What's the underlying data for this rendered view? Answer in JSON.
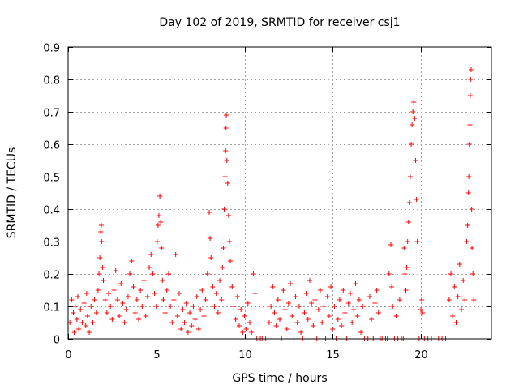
{
  "chart_data": {
    "type": "scatter",
    "title": "Day 102 of 2019, SRMTID for receiver csj1",
    "xlabel": "GPS time / hours",
    "ylabel": "SRMTID / TECUs",
    "xlim": [
      0,
      24
    ],
    "ylim": [
      0,
      0.9
    ],
    "xticks": [
      0,
      5,
      10,
      15,
      20
    ],
    "xtick_labels": [
      "0",
      "5",
      "10",
      "15",
      "20"
    ],
    "yticks": [
      0,
      0.1,
      0.2,
      0.3,
      0.4,
      0.5,
      0.6,
      0.7,
      0.8,
      0.9
    ],
    "ytick_labels": [
      "0",
      "0.1",
      "0.2",
      "0.3",
      "0.4",
      "0.5",
      "0.6",
      "0.7",
      "0.8",
      "0.9"
    ],
    "grid": true,
    "marker": "+",
    "color": "#ff0000",
    "series": [
      {
        "name": "SRMTID",
        "points": [
          [
            0.1,
            0.05
          ],
          [
            0.2,
            0.12
          ],
          [
            0.3,
            0.08
          ],
          [
            0.35,
            0.02
          ],
          [
            0.4,
            0.1
          ],
          [
            0.5,
            0.06
          ],
          [
            0.55,
            0.13
          ],
          [
            0.6,
            0.03
          ],
          [
            0.7,
            0.09
          ],
          [
            0.8,
            0.05
          ],
          [
            0.9,
            0.11
          ],
          [
            1.0,
            0.04
          ],
          [
            1.05,
            0.14
          ],
          [
            1.1,
            0.07
          ],
          [
            1.2,
            0.02
          ],
          [
            1.3,
            0.1
          ],
          [
            1.4,
            0.05
          ],
          [
            1.5,
            0.12
          ],
          [
            1.6,
            0.08
          ],
          [
            1.7,
            0.15
          ],
          [
            1.75,
            0.2
          ],
          [
            1.8,
            0.25
          ],
          [
            1.85,
            0.33
          ],
          [
            1.88,
            0.35
          ],
          [
            1.9,
            0.3
          ],
          [
            1.95,
            0.22
          ],
          [
            2.0,
            0.18
          ],
          [
            2.1,
            0.12
          ],
          [
            2.2,
            0.08
          ],
          [
            2.3,
            0.14
          ],
          [
            2.4,
            0.1
          ],
          [
            2.5,
            0.06
          ],
          [
            2.6,
            0.15
          ],
          [
            2.7,
            0.21
          ],
          [
            2.8,
            0.12
          ],
          [
            2.9,
            0.07
          ],
          [
            3.0,
            0.17
          ],
          [
            3.1,
            0.11
          ],
          [
            3.2,
            0.05
          ],
          [
            3.3,
            0.09
          ],
          [
            3.4,
            0.13
          ],
          [
            3.5,
            0.2
          ],
          [
            3.6,
            0.24
          ],
          [
            3.7,
            0.16
          ],
          [
            3.8,
            0.08
          ],
          [
            3.9,
            0.12
          ],
          [
            4.0,
            0.06
          ],
          [
            4.1,
            0.15
          ],
          [
            4.2,
            0.1
          ],
          [
            4.3,
            0.18
          ],
          [
            4.4,
            0.07
          ],
          [
            4.5,
            0.13
          ],
          [
            4.6,
            0.22
          ],
          [
            4.7,
            0.26
          ],
          [
            4.8,
            0.2
          ],
          [
            4.9,
            0.14
          ],
          [
            5.0,
            0.1
          ],
          [
            5.05,
            0.3
          ],
          [
            5.1,
            0.35
          ],
          [
            5.15,
            0.38
          ],
          [
            5.2,
            0.44
          ],
          [
            5.25,
            0.36
          ],
          [
            5.3,
            0.28
          ],
          [
            5.35,
            0.18
          ],
          [
            5.4,
            0.12
          ],
          [
            5.5,
            0.08
          ],
          [
            5.6,
            0.15
          ],
          [
            5.7,
            0.2
          ],
          [
            5.8,
            0.1
          ],
          [
            5.9,
            0.05
          ],
          [
            6.0,
            0.12
          ],
          [
            6.1,
            0.26
          ],
          [
            6.2,
            0.07
          ],
          [
            6.3,
            0.14
          ],
          [
            6.4,
            0.03
          ],
          [
            6.5,
            0.09
          ],
          [
            6.6,
            0.05
          ],
          [
            6.7,
            0.11
          ],
          [
            6.8,
            0.02
          ],
          [
            6.9,
            0.08
          ],
          [
            7.0,
            0.04
          ],
          [
            7.1,
            0.1
          ],
          [
            7.2,
            0.06
          ],
          [
            7.3,
            0.13
          ],
          [
            7.4,
            0.03
          ],
          [
            7.5,
            0.09
          ],
          [
            7.6,
            0.15
          ],
          [
            7.7,
            0.07
          ],
          [
            7.8,
            0.12
          ],
          [
            7.9,
            0.2
          ],
          [
            8.0,
            0.39
          ],
          [
            8.05,
            0.31
          ],
          [
            8.1,
            0.25
          ],
          [
            8.2,
            0.16
          ],
          [
            8.3,
            0.1
          ],
          [
            8.4,
            0.14
          ],
          [
            8.5,
            0.08
          ],
          [
            8.6,
            0.18
          ],
          [
            8.7,
            0.12
          ],
          [
            8.75,
            0.22
          ],
          [
            8.8,
            0.28
          ],
          [
            8.85,
            0.4
          ],
          [
            8.9,
            0.5
          ],
          [
            8.93,
            0.58
          ],
          [
            8.95,
            0.65
          ],
          [
            8.97,
            0.69
          ],
          [
            9.0,
            0.55
          ],
          [
            9.05,
            0.48
          ],
          [
            9.1,
            0.38
          ],
          [
            9.15,
            0.3
          ],
          [
            9.2,
            0.24
          ],
          [
            9.3,
            0.16
          ],
          [
            9.4,
            0.1
          ],
          [
            9.5,
            0.06
          ],
          [
            9.6,
            0.13
          ],
          [
            9.7,
            0.04
          ],
          [
            9.8,
            0.09
          ],
          [
            9.9,
            0.02
          ],
          [
            10.0,
            0.07
          ],
          [
            10.1,
            0.03
          ],
          [
            10.2,
            0.11
          ],
          [
            10.3,
            0.05
          ],
          [
            10.4,
            0.02
          ],
          [
            10.5,
            0.2
          ],
          [
            10.6,
            0.14
          ],
          [
            10.7,
            0.0
          ],
          [
            10.9,
            0.0
          ],
          [
            11.0,
            0.0
          ],
          [
            11.2,
            0.0
          ],
          [
            11.4,
            0.05
          ],
          [
            11.5,
            0.1
          ],
          [
            11.6,
            0.16
          ],
          [
            11.7,
            0.08
          ],
          [
            11.8,
            0.04
          ],
          [
            11.9,
            0.12
          ],
          [
            12.0,
            0.06
          ],
          [
            12.1,
            0.0
          ],
          [
            12.2,
            0.15
          ],
          [
            12.3,
            0.09
          ],
          [
            12.4,
            0.03
          ],
          [
            12.5,
            0.11
          ],
          [
            12.6,
            0.17
          ],
          [
            12.7,
            0.07
          ],
          [
            12.8,
            0.0
          ],
          [
            12.9,
            0.13
          ],
          [
            13.0,
            0.05
          ],
          [
            13.1,
            0.1
          ],
          [
            13.2,
            0.02
          ],
          [
            13.3,
            0.0
          ],
          [
            13.4,
            0.08
          ],
          [
            13.5,
            0.14
          ],
          [
            13.6,
            0.06
          ],
          [
            13.7,
            0.18
          ],
          [
            13.8,
            0.11
          ],
          [
            13.9,
            0.04
          ],
          [
            14.0,
            0.12
          ],
          [
            14.1,
            0.0
          ],
          [
            14.2,
            0.09
          ],
          [
            14.3,
            0.15
          ],
          [
            14.4,
            0.05
          ],
          [
            14.5,
            0.1
          ],
          [
            14.6,
            0.0
          ],
          [
            14.7,
            0.13
          ],
          [
            14.8,
            0.07
          ],
          [
            14.9,
            0.16
          ],
          [
            15.0,
            0.03
          ],
          [
            15.1,
            0.1
          ],
          [
            15.2,
            0.0
          ],
          [
            15.3,
            0.06
          ],
          [
            15.4,
            0.12
          ],
          [
            15.5,
            0.04
          ],
          [
            15.6,
            0.15
          ],
          [
            15.7,
            0.08
          ],
          [
            15.8,
            0.0
          ],
          [
            15.9,
            0.11
          ],
          [
            16.0,
            0.14
          ],
          [
            16.1,
            0.05
          ],
          [
            16.2,
            0.09
          ],
          [
            16.3,
            0.17
          ],
          [
            16.4,
            0.07
          ],
          [
            16.5,
            0.12
          ],
          [
            16.6,
            0.02
          ],
          [
            16.7,
            0.1
          ],
          [
            16.8,
            0.0
          ],
          [
            17.0,
            0.0
          ],
          [
            17.1,
            0.13
          ],
          [
            17.2,
            0.06
          ],
          [
            17.3,
            0.0
          ],
          [
            17.4,
            0.11
          ],
          [
            17.5,
            0.15
          ],
          [
            17.6,
            0.08
          ],
          [
            17.7,
            0.0
          ],
          [
            17.8,
            0.0
          ],
          [
            18.0,
            0.0
          ],
          [
            18.1,
            0.0
          ],
          [
            18.2,
            0.2
          ],
          [
            18.3,
            0.29
          ],
          [
            18.35,
            0.16
          ],
          [
            18.4,
            0.1
          ],
          [
            18.5,
            0.0
          ],
          [
            18.6,
            0.07
          ],
          [
            18.7,
            0.0
          ],
          [
            18.8,
            0.12
          ],
          [
            18.9,
            0.0
          ],
          [
            19.0,
            0.0
          ],
          [
            19.05,
            0.28
          ],
          [
            19.1,
            0.2
          ],
          [
            19.15,
            0.15
          ],
          [
            19.2,
            0.22
          ],
          [
            19.25,
            0.3
          ],
          [
            19.3,
            0.36
          ],
          [
            19.35,
            0.42
          ],
          [
            19.4,
            0.5
          ],
          [
            19.45,
            0.6
          ],
          [
            19.5,
            0.66
          ],
          [
            19.55,
            0.7
          ],
          [
            19.6,
            0.73
          ],
          [
            19.65,
            0.68
          ],
          [
            19.7,
            0.55
          ],
          [
            19.75,
            0.43
          ],
          [
            19.8,
            0.3
          ],
          [
            19.9,
            0.0
          ],
          [
            20.0,
            0.09
          ],
          [
            20.05,
            0.12
          ],
          [
            20.1,
            0.08
          ],
          [
            20.2,
            0.0
          ],
          [
            20.4,
            0.0
          ],
          [
            20.6,
            0.0
          ],
          [
            20.8,
            0.0
          ],
          [
            21.0,
            0.0
          ],
          [
            21.2,
            0.0
          ],
          [
            21.4,
            0.0
          ],
          [
            21.6,
            0.12
          ],
          [
            21.7,
            0.2
          ],
          [
            21.8,
            0.07
          ],
          [
            21.9,
            0.16
          ],
          [
            22.0,
            0.05
          ],
          [
            22.1,
            0.13
          ],
          [
            22.2,
            0.23
          ],
          [
            22.3,
            0.09
          ],
          [
            22.4,
            0.18
          ],
          [
            22.5,
            0.12
          ],
          [
            22.6,
            0.3
          ],
          [
            22.65,
            0.35
          ],
          [
            22.7,
            0.45
          ],
          [
            22.72,
            0.5
          ],
          [
            22.75,
            0.6
          ],
          [
            22.78,
            0.66
          ],
          [
            22.8,
            0.75
          ],
          [
            22.82,
            0.8
          ],
          [
            22.85,
            0.83
          ],
          [
            22.88,
            0.4
          ],
          [
            22.9,
            0.28
          ],
          [
            22.95,
            0.2
          ],
          [
            23.0,
            0.12
          ]
        ]
      }
    ]
  }
}
